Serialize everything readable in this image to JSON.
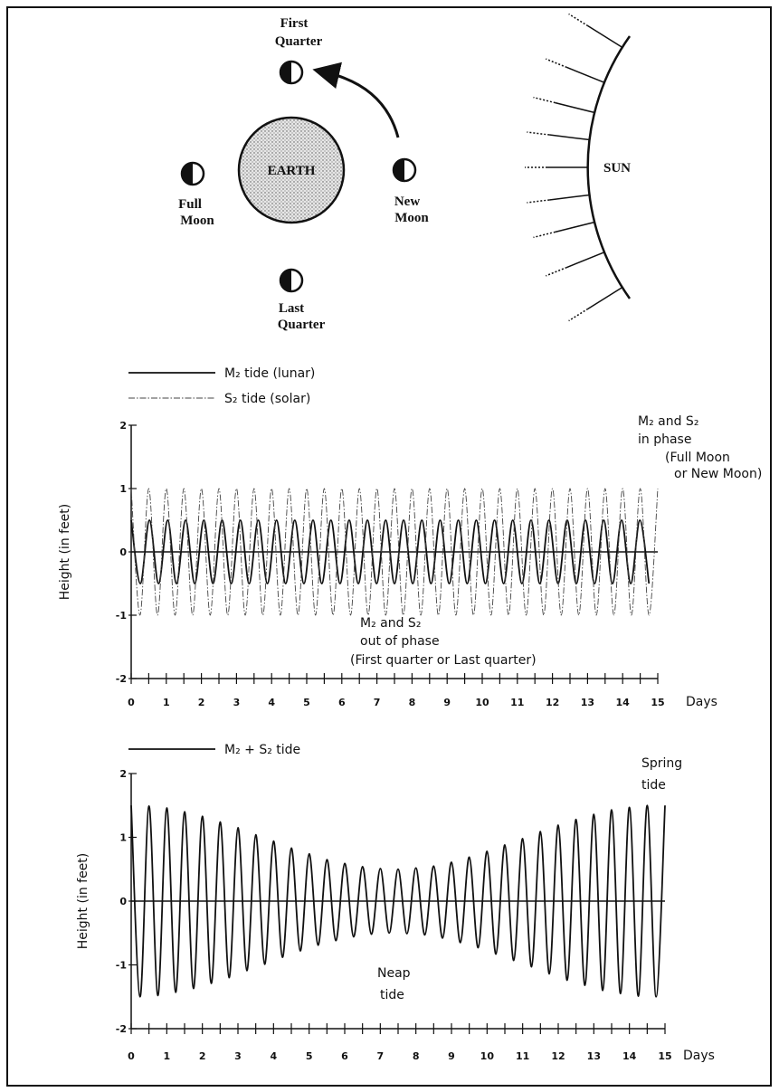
{
  "diagram": {
    "first_quarter": [
      "First",
      "Quarter"
    ],
    "earth": "EARTH",
    "full_moon": [
      "Full",
      "Moon"
    ],
    "new_moon": [
      "New",
      "Moon"
    ],
    "last_quarter": [
      "Last",
      "Quarter"
    ],
    "sun": "SUN"
  },
  "chart_data": [
    {
      "type": "line",
      "x_label": "Days",
      "y_label": "Height (in feet)",
      "xlim": [
        0,
        15
      ],
      "xticks": [
        0,
        1,
        2,
        3,
        4,
        5,
        6,
        7,
        8,
        9,
        10,
        11,
        12,
        13,
        14,
        15
      ],
      "xminorticks": [
        0.5,
        1.5,
        2.5,
        3.5,
        4.5,
        5.5,
        6.5,
        7.5,
        8.5,
        9.5,
        10.5,
        11.5,
        12.5,
        13.5,
        14.5
      ],
      "ylim": [
        -2,
        2
      ],
      "yticks": [
        2,
        1,
        0,
        -1,
        -2
      ],
      "zero_line": true,
      "series": [
        {
          "name": "M₂ tide (lunar)",
          "color": "#111111",
          "line_style": "solid",
          "x": [
            0,
            0.26,
            0.52,
            0.78,
            1.04,
            1.29,
            1.55,
            1.81,
            2.07,
            2.33,
            2.59,
            2.85,
            3.11,
            3.36,
            3.62,
            3.88,
            4.14,
            4.4,
            4.66,
            4.92,
            5.18,
            5.43,
            5.69,
            5.95,
            6.21,
            6.47,
            6.73,
            6.99,
            7.25,
            7.5,
            7.76,
            8.02,
            8.28,
            8.54,
            8.8,
            9.06,
            9.32,
            9.57,
            9.83,
            10.09,
            10.35,
            10.61,
            10.87,
            11.13,
            11.39,
            11.64,
            11.9,
            12.16,
            12.42,
            12.68,
            12.94,
            13.2,
            13.46,
            13.71,
            13.97,
            14.23,
            14.49,
            14.75
          ],
          "values": [
            0.5,
            -0.5,
            0.5,
            -0.5,
            0.5,
            -0.5,
            0.5,
            -0.5,
            0.5,
            -0.5,
            0.5,
            -0.5,
            0.5,
            -0.5,
            0.5,
            -0.5,
            0.5,
            -0.5,
            0.5,
            -0.5,
            0.5,
            -0.5,
            0.5,
            -0.5,
            0.5,
            -0.5,
            0.5,
            -0.5,
            0.5,
            -0.5,
            0.5,
            -0.5,
            0.5,
            -0.5,
            0.5,
            -0.5,
            0.5,
            -0.5,
            0.5,
            -0.5,
            0.5,
            -0.5,
            0.5,
            -0.5,
            0.5,
            -0.5,
            0.5,
            -0.5,
            0.5,
            -0.5,
            0.5,
            -0.5,
            0.5,
            -0.5,
            0.5,
            -0.5,
            0.5,
            -0.5
          ]
        },
        {
          "name": "S₂ tide (solar)",
          "color": "#444444",
          "line_style": "dashdot",
          "x": [
            0,
            0.25,
            0.5,
            0.75,
            1,
            1.25,
            1.5,
            1.75,
            2,
            2.25,
            2.5,
            2.75,
            3,
            3.25,
            3.5,
            3.75,
            4,
            4.25,
            4.5,
            4.75,
            5,
            5.25,
            5.5,
            5.75,
            6,
            6.25,
            6.5,
            6.75,
            7,
            7.25,
            7.5,
            7.75,
            8,
            8.25,
            8.5,
            8.75,
            9,
            9.25,
            9.5,
            9.75,
            10,
            10.25,
            10.5,
            10.75,
            11,
            11.25,
            11.5,
            11.75,
            12,
            12.25,
            12.5,
            12.75,
            13,
            13.25,
            13.5,
            13.75,
            14,
            14.25,
            14.5,
            14.75,
            15
          ],
          "values": [
            1,
            -1,
            1,
            -1,
            1,
            -1,
            1,
            -1,
            1,
            -1,
            1,
            -1,
            1,
            -1,
            1,
            -1,
            1,
            -1,
            1,
            -1,
            1,
            -1,
            1,
            -1,
            1,
            -1,
            1,
            -1,
            1,
            -1,
            1,
            -1,
            1,
            -1,
            1,
            -1,
            1,
            -1,
            1,
            -1,
            1,
            -1,
            1,
            -1,
            1,
            -1,
            1,
            -1,
            1,
            -1,
            1,
            -1,
            1,
            -1,
            1,
            -1,
            1,
            -1,
            1,
            -1,
            1
          ]
        }
      ],
      "annotations": [
        {
          "lines": [
            "M₂ and S₂",
            "in phase",
            "(Full Moon",
            "or New Moon)"
          ]
        },
        {
          "lines": [
            "M₂ and S₂",
            "out of phase",
            "(First quarter or Last quarter)"
          ]
        }
      ]
    },
    {
      "type": "line",
      "x_label": "Days",
      "y_label": "Height (in feet)",
      "xlim": [
        0,
        15
      ],
      "xticks": [
        0,
        1,
        2,
        3,
        4,
        5,
        6,
        7,
        8,
        9,
        10,
        11,
        12,
        13,
        14,
        15
      ],
      "xminorticks": [
        0.5,
        1.5,
        2.5,
        3.5,
        4.5,
        5.5,
        6.5,
        7.5,
        8.5,
        9.5,
        10.5,
        11.5,
        12.5,
        13.5,
        14.5
      ],
      "ylim": [
        -2,
        2
      ],
      "yticks": [
        2,
        1,
        0,
        -1,
        -2
      ],
      "zero_line": true,
      "series": [
        {
          "name": "M₂ + S₂ tide",
          "color": "#111111",
          "line_style": "solid",
          "x": [
            0,
            0.25,
            0.5,
            0.75,
            1,
            1.25,
            1.5,
            1.75,
            2,
            2.25,
            2.5,
            2.75,
            3,
            3.25,
            3.5,
            3.75,
            4,
            4.25,
            4.5,
            4.75,
            5,
            5.25,
            5.5,
            5.75,
            6,
            6.25,
            6.5,
            6.75,
            7,
            7.25,
            7.5,
            7.75,
            8,
            8.25,
            8.5,
            8.75,
            9,
            9.25,
            9.5,
            9.75,
            10,
            10.25,
            10.5,
            10.75,
            11,
            11.25,
            11.5,
            11.75,
            12,
            12.25,
            12.5,
            12.75,
            13,
            13.25,
            13.5,
            13.75,
            14,
            14.25,
            14.5,
            14.75,
            15
          ],
          "values": [
            1.5,
            -1.5,
            1.49,
            -1.48,
            1.46,
            -1.43,
            1.4,
            -1.37,
            1.33,
            -1.29,
            1.24,
            -1.2,
            1.15,
            -1.09,
            1.04,
            -0.99,
            0.94,
            -0.88,
            0.83,
            -0.78,
            0.74,
            -0.69,
            0.65,
            -0.62,
            0.59,
            -0.56,
            0.54,
            -0.52,
            0.51,
            -0.5,
            0.5,
            -0.51,
            0.52,
            -0.53,
            0.55,
            -0.58,
            0.61,
            -0.65,
            0.69,
            -0.73,
            0.78,
            -0.83,
            0.88,
            -0.93,
            0.98,
            -1.03,
            1.09,
            -1.14,
            1.19,
            -1.24,
            1.28,
            -1.32,
            1.36,
            -1.4,
            1.43,
            -1.45,
            1.47,
            -1.49,
            1.5,
            -1.5,
            1.5
          ]
        }
      ],
      "annotations": [
        {
          "lines": [
            "Spring",
            "tide"
          ]
        },
        {
          "lines": [
            "Neap",
            "tide"
          ]
        }
      ]
    }
  ]
}
